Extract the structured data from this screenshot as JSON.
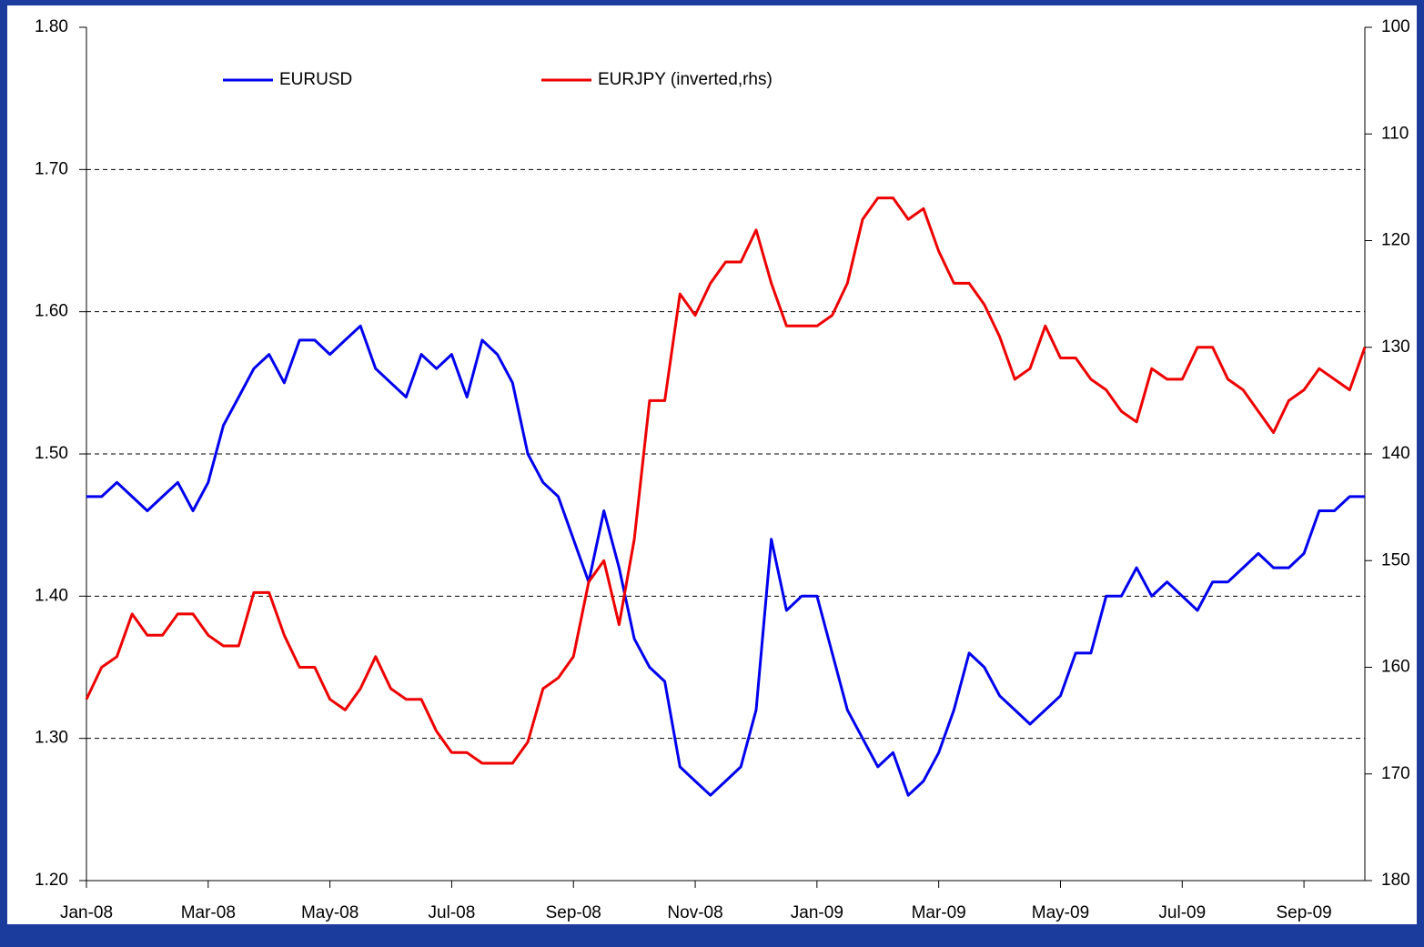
{
  "chart_data": {
    "type": "line",
    "x": [
      "Jan-08",
      "Jan-08",
      "Jan-08",
      "Jan-08",
      "Feb-08",
      "Feb-08",
      "Feb-08",
      "Feb-08",
      "Mar-08",
      "Mar-08",
      "Mar-08",
      "Mar-08",
      "Apr-08",
      "Apr-08",
      "Apr-08",
      "Apr-08",
      "May-08",
      "May-08",
      "May-08",
      "May-08",
      "Jun-08",
      "Jun-08",
      "Jun-08",
      "Jun-08",
      "Jul-08",
      "Jul-08",
      "Jul-08",
      "Jul-08",
      "Aug-08",
      "Aug-08",
      "Aug-08",
      "Aug-08",
      "Sep-08",
      "Sep-08",
      "Sep-08",
      "Sep-08",
      "Oct-08",
      "Oct-08",
      "Oct-08",
      "Oct-08",
      "Nov-08",
      "Nov-08",
      "Nov-08",
      "Nov-08",
      "Dec-08",
      "Dec-08",
      "Dec-08",
      "Dec-08",
      "Jan-09",
      "Jan-09",
      "Jan-09",
      "Jan-09",
      "Feb-09",
      "Feb-09",
      "Feb-09",
      "Feb-09",
      "Mar-09",
      "Mar-09",
      "Mar-09",
      "Mar-09",
      "Apr-09",
      "Apr-09",
      "Apr-09",
      "Apr-09",
      "May-09",
      "May-09",
      "May-09",
      "May-09",
      "Jun-09",
      "Jun-09",
      "Jun-09",
      "Jun-09",
      "Jul-09",
      "Jul-09",
      "Jul-09",
      "Jul-09",
      "Aug-09",
      "Aug-09",
      "Aug-09",
      "Aug-09",
      "Sep-09",
      "Sep-09",
      "Sep-09",
      "Sep-09",
      "Oct-09"
    ],
    "series": [
      {
        "name": "EURUSD",
        "color": "#0000ee",
        "axis": "y",
        "values": [
          1.47,
          1.47,
          1.48,
          1.47,
          1.46,
          1.47,
          1.48,
          1.46,
          1.48,
          1.52,
          1.54,
          1.56,
          1.57,
          1.55,
          1.58,
          1.58,
          1.57,
          1.58,
          1.59,
          1.56,
          1.55,
          1.54,
          1.57,
          1.56,
          1.57,
          1.54,
          1.58,
          1.57,
          1.55,
          1.5,
          1.48,
          1.47,
          1.44,
          1.41,
          1.46,
          1.42,
          1.37,
          1.35,
          1.34,
          1.28,
          1.27,
          1.26,
          1.27,
          1.28,
          1.32,
          1.44,
          1.39,
          1.4,
          1.4,
          1.36,
          1.32,
          1.3,
          1.28,
          1.29,
          1.26,
          1.27,
          1.29,
          1.32,
          1.36,
          1.35,
          1.33,
          1.32,
          1.31,
          1.32,
          1.33,
          1.36,
          1.36,
          1.4,
          1.4,
          1.42,
          1.4,
          1.41,
          1.4,
          1.39,
          1.41,
          1.41,
          1.42,
          1.43,
          1.42,
          1.42,
          1.43,
          1.46,
          1.46,
          1.47,
          1.47
        ]
      },
      {
        "name": "EURJPY (inverted,rhs)",
        "color": "#ee0000",
        "axis": "y2",
        "values": [
          163,
          160,
          159,
          155,
          157,
          157,
          155,
          155,
          157,
          158,
          158,
          153,
          153,
          157,
          160,
          160,
          163,
          164,
          162,
          159,
          162,
          163,
          163,
          166,
          168,
          168,
          169,
          169,
          169,
          167,
          162,
          161,
          159,
          152,
          150,
          156,
          148,
          135,
          135,
          125,
          127,
          124,
          122,
          122,
          119,
          124,
          128,
          128,
          128,
          127,
          124,
          118,
          116,
          116,
          118,
          117,
          121,
          124,
          124,
          126,
          129,
          133,
          132,
          128,
          131,
          131,
          133,
          134,
          136,
          137,
          132,
          133,
          133,
          130,
          130,
          133,
          134,
          136,
          138,
          135,
          134,
          132,
          133,
          134,
          130
        ]
      }
    ],
    "xticks": [
      "Jan-08",
      "Mar-08",
      "May-08",
      "Jul-08",
      "Sep-08",
      "Nov-08",
      "Jan-09",
      "Mar-09",
      "May-09",
      "Jul-09",
      "Sep-09"
    ],
    "ylim": [
      1.2,
      1.8
    ],
    "yticks": [
      {
        "value": 1.2,
        "label": "1.20"
      },
      {
        "value": 1.3,
        "label": "1.30"
      },
      {
        "value": 1.4,
        "label": "1.40"
      },
      {
        "value": 1.5,
        "label": "1.50"
      },
      {
        "value": 1.6,
        "label": "1.60"
      },
      {
        "value": 1.7,
        "label": "1.70"
      },
      {
        "value": 1.8,
        "label": "1.80"
      }
    ],
    "y2lim": [
      100,
      180
    ],
    "y2_inverted": true,
    "y2ticks": [
      100,
      110,
      120,
      130,
      140,
      150,
      160,
      170,
      180
    ],
    "grid": true,
    "legend": "top"
  }
}
